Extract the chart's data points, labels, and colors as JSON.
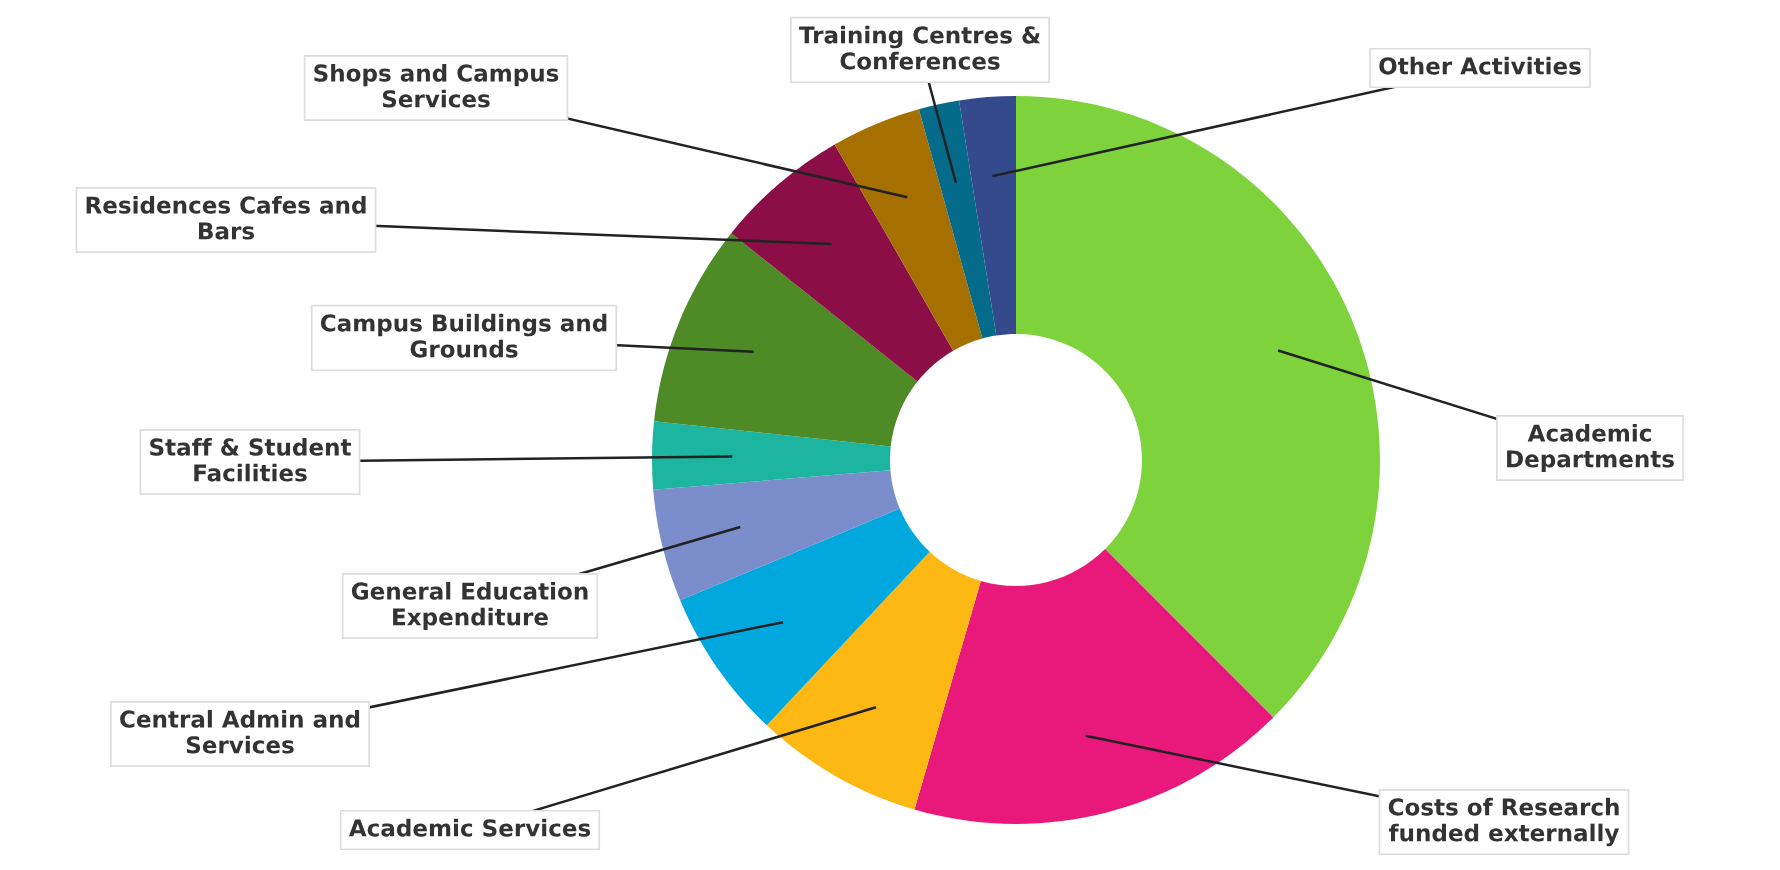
{
  "chart_data": {
    "type": "donut",
    "categories": [
      "Academic\nDepartments",
      "Costs of Research\nfunded externally",
      "Academic Services",
      "Central Admin and\nServices",
      "General Education\nExpenditure",
      "Staff & Student\nFacilities",
      "Campus Buildings and\nGrounds",
      "Residences Cafes and\nBars",
      "Shops and Campus\nServices",
      "Training Centres &\nConferences",
      "Other Activities"
    ],
    "values": [
      37.5,
      17,
      7.5,
      6.7,
      5,
      3,
      9,
      6,
      4,
      1.8,
      2.5
    ],
    "colors": [
      "#7ed23c",
      "#e8197a",
      "#fdb813",
      "#00a8dd",
      "#7b8ecb",
      "#1bb5a0",
      "#4e8a26",
      "#8b0e47",
      "#a67000",
      "#046c8a",
      "#344a8c"
    ]
  }
}
